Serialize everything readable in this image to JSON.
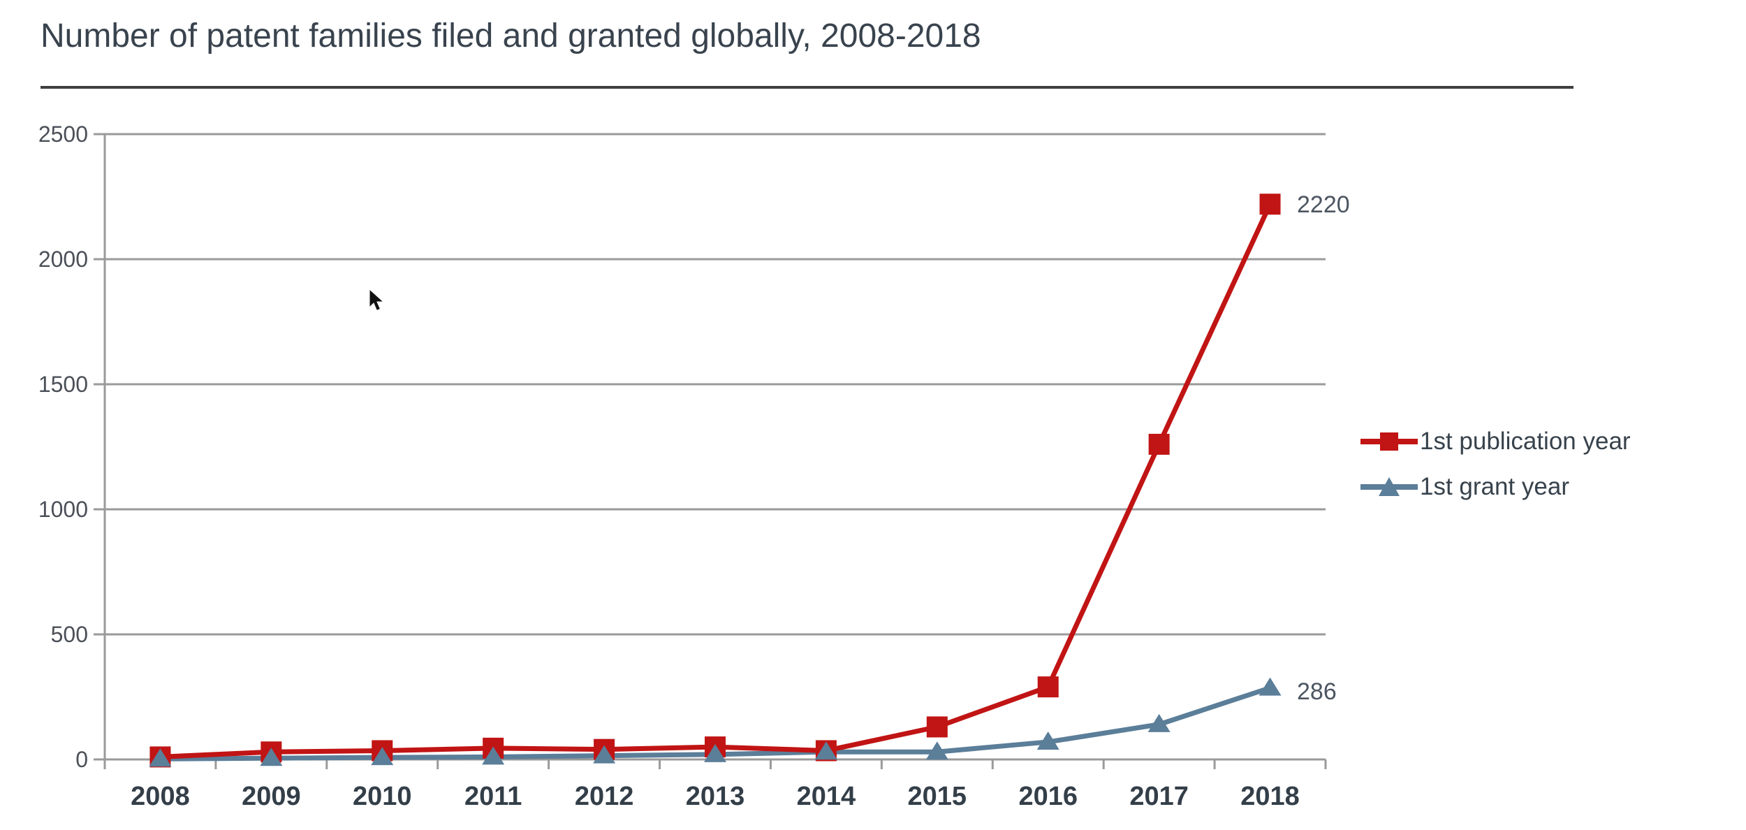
{
  "header": {
    "title": "Number of patent families filed and granted globally, 2008-2018"
  },
  "chart_data": {
    "type": "line",
    "title": "Number of patent families filed and granted globally, 2008-2018",
    "categories": [
      "2008",
      "2009",
      "2010",
      "2011",
      "2012",
      "2013",
      "2014",
      "2015",
      "2016",
      "2017",
      "2018"
    ],
    "series": [
      {
        "name": "1st publication year",
        "marker": "square",
        "color": "#c11414",
        "values": [
          10,
          30,
          35,
          45,
          40,
          50,
          35,
          130,
          290,
          1260,
          2220
        ],
        "end_label": "2220"
      },
      {
        "name": "1st grant year",
        "marker": "triangle",
        "color": "#5b7e99",
        "values": [
          2,
          5,
          8,
          10,
          15,
          20,
          30,
          30,
          70,
          140,
          286
        ],
        "end_label": "286"
      }
    ],
    "ylim": [
      0,
      2500
    ],
    "yticks": [
      0,
      500,
      1000,
      1500,
      2000,
      2500
    ],
    "grid": "horizontal",
    "legend_position": "right"
  },
  "colors": {
    "background": "#ffffff",
    "title_text": "#39434e",
    "title_rule": "#3f3f3f",
    "gridline": "#9a9a9a",
    "axis": "#9a9a9a",
    "y_tick_text": "#4b5058",
    "x_tick_text": "#333e48",
    "end_label_text": "#4c5561",
    "legend_text": "#37424c",
    "cursor": "#111111"
  }
}
